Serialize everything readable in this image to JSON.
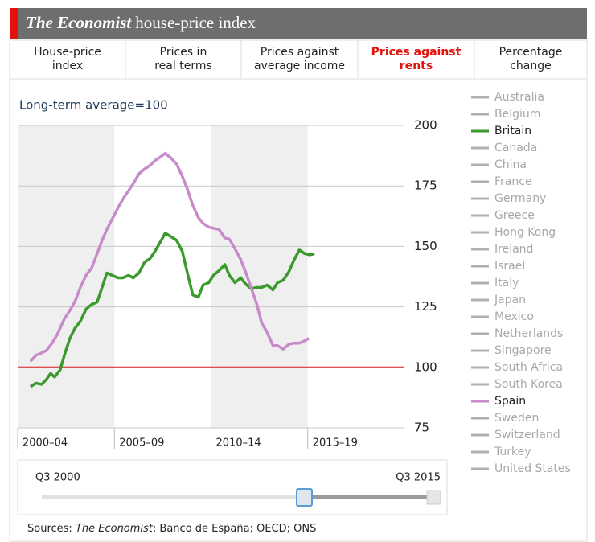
{
  "header": {
    "title_italic": "The Economist",
    "title_rest": "house-price index"
  },
  "tabs": [
    {
      "lines": [
        "House-price",
        "index"
      ]
    },
    {
      "lines": [
        "Prices in",
        "real terms"
      ]
    },
    {
      "lines": [
        "Prices against",
        "average income"
      ]
    },
    {
      "lines": [
        "Prices against",
        "rents"
      ],
      "active": true
    },
    {
      "lines": [
        "Percentage",
        "change"
      ]
    }
  ],
  "chart_data": {
    "type": "line",
    "subtitle": "Long-term average=100",
    "xlim": [
      2000,
      2020
    ],
    "xticks": [
      {
        "value": 2000,
        "label": "2000–04"
      },
      {
        "value": 2005,
        "label": "2005–09"
      },
      {
        "value": 2010,
        "label": "2010–14"
      },
      {
        "value": 2015,
        "label": "2015–19"
      }
    ],
    "shaded_bands": true,
    "ylim": [
      75,
      200
    ],
    "yticks": [
      75,
      100,
      125,
      150,
      175,
      200
    ],
    "grid": true,
    "reference_line": {
      "value": 100,
      "color": "#d7191c"
    },
    "series": [
      {
        "name": "Australia",
        "color": "#b0b0b0"
      },
      {
        "name": "Belgium",
        "color": "#b0b0b0"
      },
      {
        "name": "Britain",
        "color": "#3a9a2c",
        "x": [
          2000.66,
          2000.95,
          2001.24,
          2001.49,
          2001.7,
          2001.91,
          2002.2,
          2002.41,
          2002.7,
          2002.95,
          2003.24,
          2003.53,
          2003.82,
          2004.11,
          2004.36,
          2004.61,
          2004.9,
          2005.19,
          2005.44,
          2005.73,
          2005.98,
          2006.27,
          2006.56,
          2006.85,
          2007.1,
          2007.39,
          2007.63,
          2007.93,
          2008.22,
          2008.51,
          2008.76,
          2009.05,
          2009.34,
          2009.59,
          2009.88,
          2010.12,
          2010.41,
          2010.71,
          2010.95,
          2011.24,
          2011.54,
          2011.78,
          2012.07,
          2012.37,
          2012.61,
          2012.9,
          2013.2,
          2013.44,
          2013.73,
          2014.02,
          2014.27,
          2014.56,
          2014.85,
          2015.1,
          2015.35
        ],
        "values": [
          92,
          93.5,
          93,
          95,
          97.5,
          96,
          99,
          105,
          112,
          116,
          119,
          124,
          126,
          127,
          133,
          139,
          138,
          137,
          137,
          138,
          137,
          139,
          143.5,
          145,
          148,
          152,
          155.5,
          154,
          152.5,
          148,
          139.5,
          130,
          129,
          134,
          135,
          138,
          140,
          142.5,
          138,
          135,
          137,
          134.5,
          132.5,
          133,
          133,
          134,
          132,
          135,
          136,
          139.5,
          144,
          148.5,
          147,
          146.5,
          147
        ]
      },
      {
        "name": "Canada",
        "color": "#b0b0b0"
      },
      {
        "name": "China",
        "color": "#b0b0b0"
      },
      {
        "name": "France",
        "color": "#b0b0b0"
      },
      {
        "name": "Germany",
        "color": "#b0b0b0"
      },
      {
        "name": "Greece",
        "color": "#b0b0b0"
      },
      {
        "name": "Hong Kong",
        "color": "#b0b0b0"
      },
      {
        "name": "Ireland",
        "color": "#b0b0b0"
      },
      {
        "name": "Israel",
        "color": "#b0b0b0"
      },
      {
        "name": "Italy",
        "color": "#b0b0b0"
      },
      {
        "name": "Japan",
        "color": "#b0b0b0"
      },
      {
        "name": "Mexico",
        "color": "#b0b0b0"
      },
      {
        "name": "Netherlands",
        "color": "#b0b0b0"
      },
      {
        "name": "Singapore",
        "color": "#b0b0b0"
      },
      {
        "name": "South Africa",
        "color": "#b0b0b0"
      },
      {
        "name": "South Korea",
        "color": "#b0b0b0"
      },
      {
        "name": "Spain",
        "color": "#c88bc9",
        "x": [
          2000.66,
          2000.95,
          2001.24,
          2001.49,
          2001.78,
          2002.07,
          2002.41,
          2002.7,
          2002.95,
          2003.24,
          2003.53,
          2003.82,
          2004.11,
          2004.36,
          2004.61,
          2004.9,
          2005.19,
          2005.44,
          2005.73,
          2005.98,
          2006.27,
          2006.56,
          2006.85,
          2007.1,
          2007.39,
          2007.63,
          2007.93,
          2008.22,
          2008.51,
          2008.76,
          2009.05,
          2009.34,
          2009.59,
          2009.88,
          2010.12,
          2010.41,
          2010.71,
          2010.95,
          2011.24,
          2011.54,
          2011.78,
          2012.07,
          2012.37,
          2012.61,
          2012.9,
          2013.2,
          2013.44,
          2013.73,
          2014.02,
          2014.27,
          2014.56,
          2014.85,
          2015.06
        ],
        "values": [
          102.5,
          105,
          106,
          107,
          110,
          114,
          120,
          123.5,
          127,
          133,
          138,
          141,
          147,
          152.5,
          157,
          161.5,
          166,
          169.5,
          173,
          176,
          180,
          182,
          183.5,
          185.5,
          187,
          188.5,
          186.5,
          184,
          179,
          174,
          167,
          162,
          159.5,
          158,
          157.5,
          157,
          153.5,
          153,
          149,
          144.5,
          139.5,
          133,
          126,
          118.5,
          114.5,
          109,
          109,
          107.5,
          109.5,
          110,
          110,
          111,
          112
        ]
      },
      {
        "name": "Sweden",
        "color": "#b0b0b0"
      },
      {
        "name": "Switzerland",
        "color": "#b0b0b0"
      },
      {
        "name": "Turkey",
        "color": "#b0b0b0"
      },
      {
        "name": "United States",
        "color": "#b0b0b0"
      }
    ]
  },
  "slider": {
    "start_label": "Q3 2000",
    "end_label": "Q3 2015"
  },
  "sources": {
    "prefix": "Sources: ",
    "italic": "The Economist",
    "rest": "; Banco de España; OECD; ONS"
  }
}
